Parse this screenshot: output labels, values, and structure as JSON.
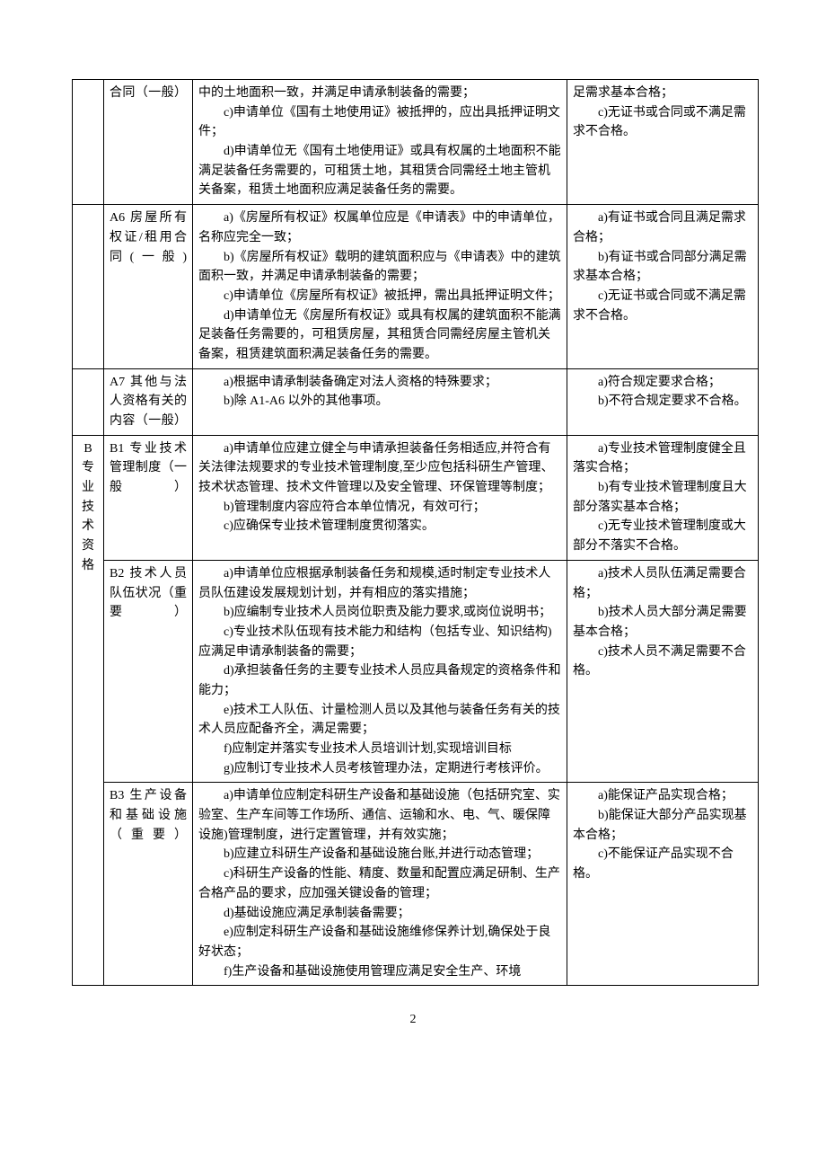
{
  "pageNumber": "2",
  "rows": [
    {
      "category": "",
      "item": "合同（一般）",
      "req": [
        "中的土地面积一致，并满足申请承制装备的需要；",
        "　　c)申请单位《国有土地使用证》被抵押的，应出具抵押证明文件；",
        "　　d)申请单位无《国有土地使用证》或具有权属的土地面积不能满足装备任务需要的，可租赁土地，其租赁合同需经土地主管机关备案，租赁土地面积应满足装备任务的需要。"
      ],
      "eval": [
        "足需求基本合格；",
        "　　c)无证书或合同或不满足需求不合格。"
      ]
    },
    {
      "category": "",
      "item": "A6 房屋所有权证/租用合同(一般)",
      "req": [
        "　　a)《房屋所有权证》权属单位应是《申请表》中的申请单位，名称应完全一致；",
        "　　b)《房屋所有权证》载明的建筑面积应与《申请表》中的建筑面积一致，并满足申请承制装备的需要；",
        "　　c)申请单位《房屋所有权证》被抵押，需出具抵押证明文件；",
        "　　d)申请单位无《房屋所有权证》或具有权属的建筑面积不能满足装备任务需要的，可租赁房屋，其租赁合同需经房屋主管机关备案，租赁建筑面积满足装备任务的需要。"
      ],
      "eval": [
        "　　a)有证书或合同且满足需求合格；",
        "　　b)有证书或合同部分满足需求基本合格；",
        "　　c)无证书或合同或不满足需求不合格。"
      ]
    },
    {
      "category": "",
      "item": "A7 其他与法人资格有关的内容（一般）",
      "req": [
        "　　a)根据申请承制装备确定对法人资格的特殊要求；",
        "　　b)除 A1-A6 以外的其他事项。"
      ],
      "eval": [
        "　　a)符合规定要求合格；",
        "　　b)不符合规定要求不合格。"
      ]
    },
    {
      "category": "B专业技术资格",
      "catRowspan": 4,
      "item": "B1 专业技术管理制度（一般）",
      "req": [
        "　　a)申请单位应建立健全与申请承担装备任务相适应,并符合有关法律法规要求的专业技术管理制度,至少应包括科研生产管理、技术状态管理、技术文件管理以及安全管理、环保管理等制度；",
        "　　b)管理制度内容应符合本单位情况，有效可行；",
        "　　c)应确保专业技术管理制度贯彻落实。"
      ],
      "eval": [
        "　　a)专业技术管理制度健全且落实合格；",
        "　　b)有专业技术管理制度且大部分落实基本合格；",
        "　　c)无专业技术管理制度或大部分不落实不合格。"
      ]
    },
    {
      "category": "",
      "item": "B2 技术人员队伍状况（重要）",
      "req": [
        "　　a)申请单位应根据承制装备任务和规模,适时制定专业技术人员队伍建设发展规划计划，并有相应的落实措施；",
        "　　b)应编制专业技术人员岗位职责及能力要求,或岗位说明书；",
        "　　c)专业技术队伍现有技术能力和结构（包括专业、知识结构)应满足申请承制装备的需要；",
        "　　d)承担装备任务的主要专业技术人员应具备规定的资格条件和能力；",
        "　　e)技术工人队伍、计量检测人员以及其他与装备任务有关的技术人员应配备齐全，满足需要；",
        "　　f)应制定并落实专业技术人员培训计划,实现培训目标",
        "　　g)应制订专业技术人员考核管理办法，定期进行考核评价。"
      ],
      "eval": [
        "　　a)技术人员队伍满足需要合格；",
        "　　b)技术人员大部分满足需要基本合格；",
        "　　c)技术人员不满足需要不合格。"
      ]
    },
    {
      "category": "",
      "item": "B3 生产设备和基础设施（重要）",
      "req": [
        "　　a)申请单位应制定科研生产设备和基础设施（包括研究室、实验室、生产车间等工作场所、通信、运输和水、电、气、暖保障设施)管理制度，进行定置管理，并有效实施；",
        "　　b)应建立科研生产设备和基础设施台账,并进行动态管理；",
        "　　c)科研生产设备的性能、精度、数量和配置应满足研制、生产合格产品的要求，应加强关键设备的管理；",
        "　　d)基础设施应满足承制装备需要；",
        "　　e)应制定科研生产设备和基础设施维修保养计划,确保处于良好状态；",
        "　　f)生产设备和基础设施使用管理应满足安全生产、环境"
      ],
      "eval": [
        "　　a)能保证产品实现合格；",
        "　　b)能保证大部分产品实现基本合格；",
        "　　c)不能保证产品实现不合格。"
      ]
    }
  ]
}
